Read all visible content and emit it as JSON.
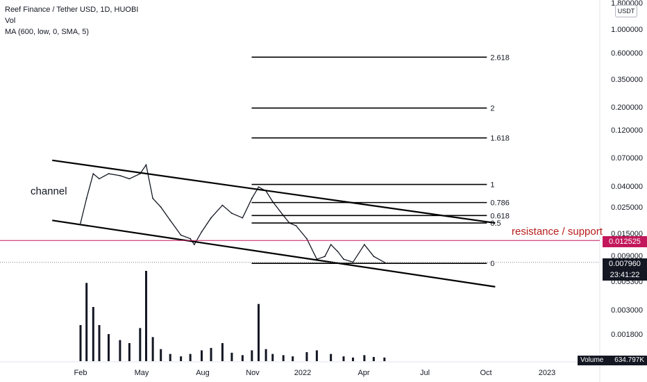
{
  "legend": {
    "symbol": "Reef Finance / Tether USD, 1D, HUOBI",
    "volume": "Vol",
    "ma": "MA (600, low, 0, SMA, 5)"
  },
  "currency_label": "USDT",
  "annotations": {
    "channel": "channel",
    "resistance_support": "resistance / support"
  },
  "price_tags": {
    "resistance": "0.012525",
    "last": "0.007960",
    "countdown": "23:41:22",
    "volume_label": "Volume",
    "volume_value": "634.797K"
  },
  "colors": {
    "resistance_line": "#c2185b",
    "resistance_text": "#b71c1c",
    "price_dark": "#131722",
    "volume_bar": "#131722",
    "axis_text": "#131722"
  },
  "chart_data": [
    {
      "type": "line",
      "scale": "log",
      "y_ticks": [
        "1.800000",
        "1.000000",
        "0.600000",
        "0.350000",
        "0.200000",
        "0.120000",
        "0.070000",
        "0.040000",
        "0.025000",
        "0.015000",
        "0.009000",
        "0.005300",
        "0.003000",
        "0.001800"
      ],
      "x_ticks": [
        "Feb",
        "May",
        "Aug",
        "Nov",
        "2022",
        "Apr",
        "Jul",
        "Oct",
        "2023"
      ],
      "price_series": [
        [
          "2021-02-01",
          0.018
        ],
        [
          "2021-02-10",
          0.03
        ],
        [
          "2021-02-20",
          0.05
        ],
        [
          "2021-03-01",
          0.045
        ],
        [
          "2021-03-15",
          0.05
        ],
        [
          "2021-04-01",
          0.048
        ],
        [
          "2021-04-15",
          0.045
        ],
        [
          "2021-05-01",
          0.05
        ],
        [
          "2021-05-10",
          0.06
        ],
        [
          "2021-05-20",
          0.03
        ],
        [
          "2021-06-01",
          0.025
        ],
        [
          "2021-06-15",
          0.019
        ],
        [
          "2021-07-01",
          0.014
        ],
        [
          "2021-07-15",
          0.013
        ],
        [
          "2021-07-21",
          0.0115
        ],
        [
          "2021-08-01",
          0.015
        ],
        [
          "2021-08-15",
          0.02
        ],
        [
          "2021-09-01",
          0.026
        ],
        [
          "2021-09-15",
          0.022
        ],
        [
          "2021-10-01",
          0.02
        ],
        [
          "2021-10-15",
          0.03
        ],
        [
          "2021-10-25",
          0.038
        ],
        [
          "2021-11-05",
          0.035
        ],
        [
          "2021-11-15",
          0.028
        ],
        [
          "2021-12-01",
          0.021
        ],
        [
          "2021-12-10",
          0.018
        ],
        [
          "2021-12-20",
          0.017
        ],
        [
          "2022-01-05",
          0.013
        ],
        [
          "2022-01-20",
          0.0085
        ],
        [
          "2022-02-01",
          0.009
        ],
        [
          "2022-02-10",
          0.0115
        ],
        [
          "2022-02-20",
          0.01
        ],
        [
          "2022-03-01",
          0.0085
        ],
        [
          "2022-03-15",
          0.008
        ],
        [
          "2022-04-01",
          0.0115
        ],
        [
          "2022-04-15",
          0.009
        ],
        [
          "2022-05-01",
          0.00796
        ]
      ],
      "volume_series": [
        [
          "2021-02-01",
          60
        ],
        [
          "2021-02-10",
          130
        ],
        [
          "2021-02-20",
          90
        ],
        [
          "2021-03-01",
          60
        ],
        [
          "2021-03-15",
          45
        ],
        [
          "2021-04-01",
          35
        ],
        [
          "2021-04-15",
          30
        ],
        [
          "2021-05-01",
          55
        ],
        [
          "2021-05-10",
          150
        ],
        [
          "2021-05-20",
          40
        ],
        [
          "2021-06-01",
          20
        ],
        [
          "2021-06-15",
          12
        ],
        [
          "2021-07-01",
          8
        ],
        [
          "2021-07-15",
          12
        ],
        [
          "2021-08-01",
          18
        ],
        [
          "2021-08-15",
          22
        ],
        [
          "2021-09-01",
          30
        ],
        [
          "2021-09-15",
          14
        ],
        [
          "2021-10-01",
          10
        ],
        [
          "2021-10-15",
          18
        ],
        [
          "2021-10-25",
          95
        ],
        [
          "2021-11-05",
          20
        ],
        [
          "2021-11-15",
          12
        ],
        [
          "2021-12-01",
          10
        ],
        [
          "2021-12-15",
          8
        ],
        [
          "2022-01-05",
          15
        ],
        [
          "2022-01-20",
          18
        ],
        [
          "2022-02-10",
          12
        ],
        [
          "2022-03-01",
          8
        ],
        [
          "2022-03-15",
          6
        ],
        [
          "2022-04-01",
          10
        ],
        [
          "2022-04-15",
          7
        ],
        [
          "2022-05-01",
          6
        ]
      ],
      "channel": {
        "upper": [
          [
            "2021-01-25",
            0.066
          ],
          [
            "2022-10-01",
            0.018
          ]
        ],
        "lower": [
          [
            "2021-01-25",
            0.019
          ],
          [
            "2022-10-01",
            0.0048
          ]
        ]
      },
      "fibonacci": {
        "start": "2021-10-25",
        "end": "2022-10-01",
        "levels": [
          {
            "ratio": "2.618",
            "price": 0.56
          },
          {
            "ratio": "2",
            "price": 0.195
          },
          {
            "ratio": "1.618",
            "price": 0.105
          },
          {
            "ratio": "1",
            "price": 0.04
          },
          {
            "ratio": "0.786",
            "price": 0.0275
          },
          {
            "ratio": "0.618",
            "price": 0.021
          },
          {
            "ratio": "0.5",
            "price": 0.018
          },
          {
            "ratio": "0",
            "price": 0.0078
          }
        ]
      },
      "resistance_support_level": 0.012525,
      "last_price": 0.00796
    }
  ]
}
